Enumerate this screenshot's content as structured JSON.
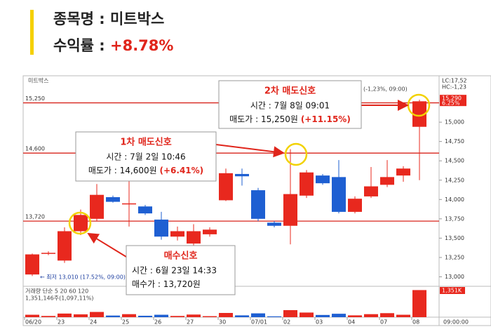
{
  "header": {
    "title": "종목명 : 미트박스",
    "return_label": "수익률 :",
    "return_value": "+8.78%"
  },
  "chart_data": {
    "type": "candlestick",
    "title": "미트박스",
    "categories": [
      "06/20",
      null,
      "23",
      null,
      "24",
      null,
      "25",
      null,
      "26",
      null,
      "27",
      null,
      "30",
      null,
      "07/01",
      null,
      "02",
      null,
      "03",
      null,
      "04",
      null,
      "07",
      null,
      "08"
    ],
    "open": [
      13030,
      13300,
      13210,
      13590,
      13750,
      14030,
      13950,
      13910,
      13740,
      13520,
      13430,
      13550,
      13990,
      14330,
      14120,
      13700,
      13660,
      14050,
      14310,
      14290,
      13840,
      14040,
      14190,
      14310,
      14940
    ],
    "close": [
      13290,
      13310,
      13590,
      13800,
      14060,
      13970,
      13950,
      13820,
      13520,
      13590,
      13590,
      13610,
      14340,
      14300,
      13750,
      13660,
      14070,
      14350,
      14210,
      13840,
      14010,
      14170,
      14290,
      14400,
      15270
    ],
    "high": [
      13300,
      13330,
      13640,
      13870,
      14200,
      14050,
      14250,
      13930,
      13840,
      13650,
      13680,
      13640,
      14400,
      14400,
      14150,
      13720,
      14650,
      14380,
      14330,
      14510,
      14040,
      14420,
      14510,
      14430,
      15290
    ],
    "low": [
      13010,
      13280,
      13180,
      13540,
      13720,
      13960,
      13650,
      13800,
      13480,
      13470,
      13380,
      13520,
      13980,
      14180,
      13720,
      13640,
      13420,
      14020,
      14190,
      13820,
      13820,
      14020,
      14160,
      14230,
      14250
    ],
    "up_color": "#e8281e",
    "down_color": "#1e5fd2",
    "ylim": [
      12950,
      15600
    ],
    "yticks": [
      {
        "value": 13000,
        "label": "13,000"
      },
      {
        "value": 13250,
        "label": "13,250"
      },
      {
        "value": 13500,
        "label": "13,500"
      },
      {
        "value": 13750,
        "label": "13,750"
      },
      {
        "value": 14000,
        "label": "14,000"
      },
      {
        "value": 14250,
        "label": "14,250"
      },
      {
        "value": 14500,
        "label": "14,500"
      },
      {
        "value": 14750,
        "label": "14,750"
      },
      {
        "value": 15000,
        "label": "15,000"
      }
    ],
    "hlines": [
      {
        "value": 15250,
        "label": "15,250"
      },
      {
        "value": 14600,
        "label": "14,600"
      },
      {
        "value": 13720,
        "label": "13,720"
      }
    ],
    "last_price": {
      "value": 15290,
      "label": "15,290"
    },
    "last_change": "6.25%",
    "low_note": "← 최저 13,010 (17.52%, 09:00)",
    "high_note": "(-1,23%, 09:00)",
    "corner_notes": [
      "LC:17,52",
      "HC:-1,23"
    ],
    "volume": [
      120,
      60,
      180,
      140,
      260,
      80,
      150,
      70,
      120,
      60,
      130,
      50,
      210,
      90,
      190,
      40,
      350,
      230,
      110,
      170,
      90,
      150,
      200,
      120,
      1351
    ],
    "volume_lim": [
      0,
      1400
    ],
    "volume_legend": "거래량 단순 5 20 60 120",
    "volume_note": "1,351,146주(1,097,11%)",
    "volume_tag": "1,351K",
    "time_label": "09:00:00",
    "annotations": [
      {
        "title": "매수신호",
        "time": "시간 : 6월 23일 14:33",
        "price": "매수가 : 13,720원"
      },
      {
        "title": "1차 매도신호",
        "time": "시간 : 7월 2일 10:46",
        "price": "매도가 : 14,600원",
        "change": "(+6.41%)"
      },
      {
        "title": "2차 매도신호",
        "time": "시간 : 7월 8일 09:01",
        "price": "매도가 : 15,250원",
        "change": "(+11.15%)"
      }
    ]
  }
}
